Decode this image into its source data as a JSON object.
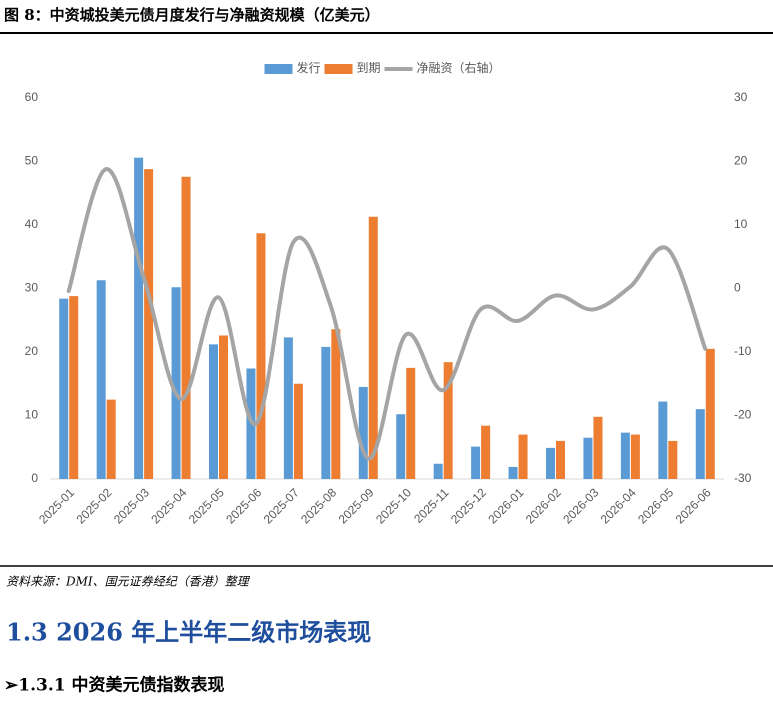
{
  "document": {
    "caption": "图 8：中资城投美元债月度发行与净融资规模（亿美元）",
    "source": "资料来源：DMI、国元证券经纪（香港）整理",
    "heading": "1.3 2026 年上半年二级市场表现",
    "subheading": "➢1.3.1 中资美元债指数表现"
  },
  "chart_data": {
    "type": "bar",
    "categories": [
      "2025-01",
      "2025-02",
      "2025-03",
      "2025-04",
      "2025-05",
      "2025-06",
      "2025-07",
      "2025-08",
      "2025-09",
      "2025-10",
      "2025-11",
      "2025-12",
      "2026-01",
      "2026-02",
      "2026-03",
      "2026-04",
      "2026-05",
      "2026-06"
    ],
    "series": [
      {
        "name": "发行",
        "type": "bar",
        "color": "#5b9bd5",
        "values": [
          28.4,
          31.3,
          50.6,
          30.2,
          21.2,
          17.4,
          22.3,
          20.8,
          14.5,
          10.2,
          2.4,
          5.1,
          1.9,
          4.9,
          6.5,
          7.3,
          12.2,
          11.0
        ]
      },
      {
        "name": "到期",
        "type": "bar",
        "color": "#ed7d31",
        "values": [
          28.8,
          12.5,
          48.8,
          47.6,
          22.6,
          38.7,
          15.0,
          23.6,
          41.3,
          17.5,
          18.4,
          8.4,
          7.0,
          6.0,
          9.8,
          7.0,
          6.0,
          20.5
        ]
      },
      {
        "name": "净融资（右轴）",
        "type": "line",
        "axis": "y2",
        "color": "#a5a5a5",
        "values": [
          -0.4,
          18.8,
          1.8,
          -17.4,
          -1.4,
          -21.3,
          7.3,
          -2.8,
          -26.8,
          -7.3,
          -16.0,
          -3.3,
          -5.1,
          -1.1,
          -3.3,
          0.3,
          6.2,
          -9.5
        ]
      }
    ],
    "ylim": [
      0,
      60
    ],
    "yticks": [
      0,
      10,
      20,
      30,
      40,
      50,
      60
    ],
    "y2lim": [
      -30,
      30
    ],
    "y2ticks": [
      -30,
      -20,
      -10,
      0,
      10,
      20,
      30
    ],
    "grid": false,
    "legend": "top"
  }
}
